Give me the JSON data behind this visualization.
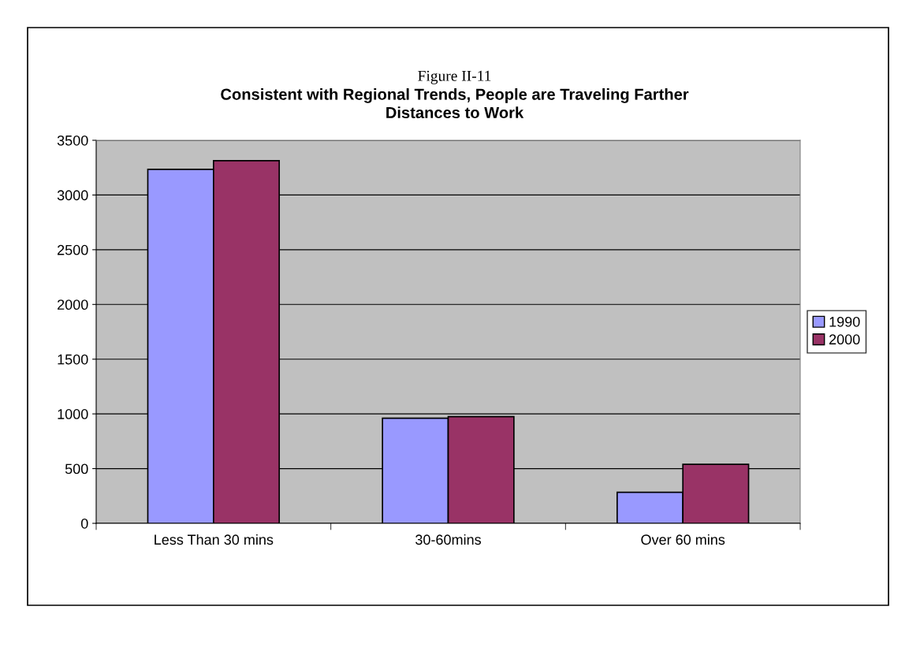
{
  "chart_data": {
    "type": "bar",
    "title": "Figure II-11",
    "subtitle": "Consistent with Regional Trends, People are Traveling Farther\nDistances to Work",
    "categories": [
      "Less Than 30 mins",
      "30-60mins",
      "Over 60 mins"
    ],
    "series": [
      {
        "name": "1990",
        "color": "#9999ff",
        "values": [
          3235,
          961,
          283
        ]
      },
      {
        "name": "2000",
        "color": "#993366",
        "values": [
          3314,
          975,
          539
        ]
      }
    ],
    "ylim": [
      0,
      3500
    ],
    "yticks": [
      0,
      500,
      1000,
      1500,
      2000,
      2500,
      3000,
      3500
    ],
    "grid": "y",
    "legend": "right"
  }
}
